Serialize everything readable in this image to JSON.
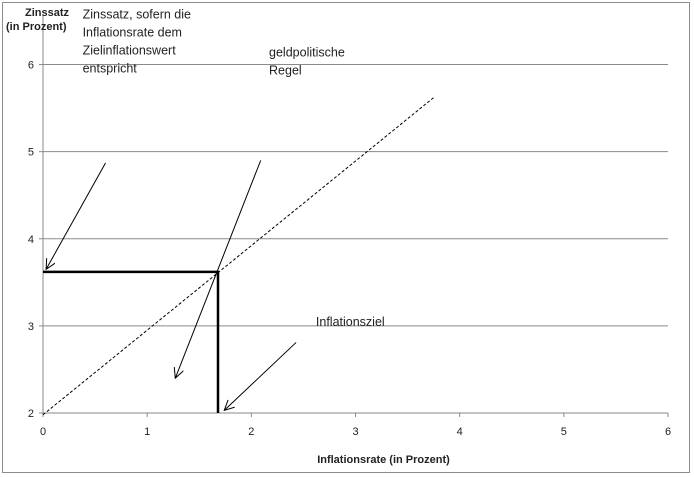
{
  "chart_data": {
    "type": "line",
    "xlabel": "Inflationsrate (in Prozent)",
    "ylabel_lines": [
      "Zinssatz",
      "(in Prozent)"
    ],
    "xlim": [
      0,
      6
    ],
    "ylim": [
      2,
      6.5
    ],
    "x_ticks": [
      0,
      1,
      2,
      3,
      4,
      5,
      6
    ],
    "y_ticks": [
      2,
      3,
      4,
      5,
      6
    ],
    "grid": "horizontal",
    "series": [
      {
        "name": "geldpolitische Regel",
        "style": "dashed",
        "color": "#000000",
        "points": [
          [
            0,
            1.98
          ],
          [
            3.76,
            5.63
          ]
        ]
      }
    ],
    "reference": {
      "x": 1.68,
      "y": 3.62,
      "color": "#000000"
    },
    "annotations": [
      {
        "id": "target-rate",
        "lines": [
          "Zinssatz, sofern die",
          "Inflationsrate dem",
          "Zielinflationswert",
          "entspricht"
        ],
        "text_at": [
          0.38,
          6.53
        ],
        "arrow_from": [
          0.6,
          4.87
        ],
        "arrow_to": [
          0.03,
          3.65
        ]
      },
      {
        "id": "policy-rule",
        "lines": [
          "geldpolitische",
          "Regel"
        ],
        "text_at": [
          2.17,
          6.09
        ],
        "arrow_from": [
          2.09,
          4.9
        ],
        "arrow_to": [
          1.27,
          2.4
        ]
      },
      {
        "id": "inflation-target",
        "lines": [
          "Inflationsziel"
        ],
        "text_at": [
          2.62,
          3.0
        ],
        "arrow_from": [
          2.43,
          2.81
        ],
        "arrow_to": [
          1.74,
          2.03
        ]
      }
    ]
  }
}
